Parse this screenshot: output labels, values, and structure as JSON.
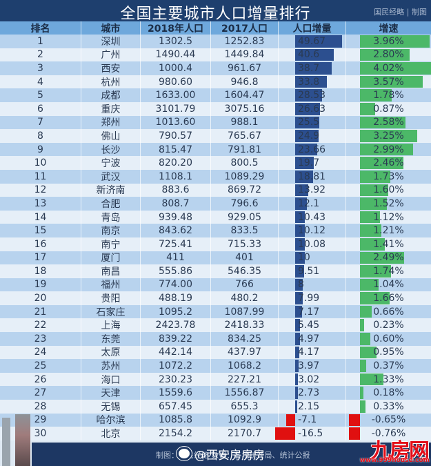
{
  "header": {
    "title": "全国主要城市人口增量排行",
    "credit": "国民经略 | 制图"
  },
  "columns": [
    "排名",
    "城市",
    "2018年人口",
    "2017人口",
    "人口增量",
    "增速"
  ],
  "rows": [
    {
      "rank": "1",
      "city": "深圳",
      "pop2018": "1302.5",
      "pop2017": "1252.83",
      "increase": "49.67",
      "growth": "3.96%"
    },
    {
      "rank": "2",
      "city": "广州",
      "pop2018": "1490.44",
      "pop2017": "1449.84",
      "increase": "40.6",
      "growth": "2.80%"
    },
    {
      "rank": "3",
      "city": "西安",
      "pop2018": "1000.4",
      "pop2017": "961.67",
      "increase": "38.7",
      "growth": "4.02%"
    },
    {
      "rank": "4",
      "city": "杭州",
      "pop2018": "980.60",
      "pop2017": "946.8",
      "increase": "33.8",
      "growth": "3.57%"
    },
    {
      "rank": "5",
      "city": "成都",
      "pop2018": "1633.00",
      "pop2017": "1604.47",
      "increase": "28.53",
      "growth": "1.78%"
    },
    {
      "rank": "6",
      "city": "重庆",
      "pop2018": "3101.79",
      "pop2017": "3075.16",
      "increase": "26.63",
      "growth": "0.87%"
    },
    {
      "rank": "7",
      "city": "郑州",
      "pop2018": "1013.60",
      "pop2017": "988.1",
      "increase": "25.5",
      "growth": "2.58%"
    },
    {
      "rank": "8",
      "city": "佛山",
      "pop2018": "790.57",
      "pop2017": "765.67",
      "increase": "24.9",
      "growth": "3.25%"
    },
    {
      "rank": "9",
      "city": "长沙",
      "pop2018": "815.47",
      "pop2017": "791.81",
      "increase": "23.66",
      "growth": "2.99%"
    },
    {
      "rank": "10",
      "city": "宁波",
      "pop2018": "820.20",
      "pop2017": "800.5",
      "increase": "19.7",
      "growth": "2.46%"
    },
    {
      "rank": "11",
      "city": "武汉",
      "pop2018": "1108.1",
      "pop2017": "1089.29",
      "increase": "18.81",
      "growth": "1.73%"
    },
    {
      "rank": "12",
      "city": "新济南",
      "pop2018": "883.6",
      "pop2017": "869.72",
      "increase": "13.92",
      "growth": "1.60%"
    },
    {
      "rank": "13",
      "city": "合肥",
      "pop2018": "808.7",
      "pop2017": "796.6",
      "increase": "12.1",
      "growth": "1.52%"
    },
    {
      "rank": "14",
      "city": "青岛",
      "pop2018": "939.48",
      "pop2017": "929.05",
      "increase": "10.43",
      "growth": "1.12%"
    },
    {
      "rank": "15",
      "city": "南京",
      "pop2018": "843.62",
      "pop2017": "833.5",
      "increase": "10.12",
      "growth": "1.21%"
    },
    {
      "rank": "16",
      "city": "南宁",
      "pop2018": "725.41",
      "pop2017": "715.33",
      "increase": "10.08",
      "growth": "1.41%"
    },
    {
      "rank": "17",
      "city": "厦门",
      "pop2018": "411",
      "pop2017": "401",
      "increase": "10",
      "growth": "2.49%"
    },
    {
      "rank": "18",
      "city": "南昌",
      "pop2018": "555.86",
      "pop2017": "546.35",
      "increase": "9.51",
      "growth": "1.74%"
    },
    {
      "rank": "19",
      "city": "福州",
      "pop2018": "774.00",
      "pop2017": "766",
      "increase": "8",
      "growth": "1.04%"
    },
    {
      "rank": "20",
      "city": "贵阳",
      "pop2018": "488.19",
      "pop2017": "480.2",
      "increase": "7.99",
      "growth": "1.66%"
    },
    {
      "rank": "21",
      "city": "石家庄",
      "pop2018": "1095.2",
      "pop2017": "1087.99",
      "increase": "7.17",
      "growth": "0.66%"
    },
    {
      "rank": "22",
      "city": "上海",
      "pop2018": "2423.78",
      "pop2017": "2418.33",
      "increase": "5.45",
      "growth": "0.23%"
    },
    {
      "rank": "23",
      "city": "东莞",
      "pop2018": "839.22",
      "pop2017": "834.25",
      "increase": "4.97",
      "growth": "0.60%"
    },
    {
      "rank": "24",
      "city": "太原",
      "pop2018": "442.14",
      "pop2017": "437.97",
      "increase": "4.17",
      "growth": "0.95%"
    },
    {
      "rank": "25",
      "city": "苏州",
      "pop2018": "1072.2",
      "pop2017": "1068.2",
      "increase": "3.97",
      "growth": "0.37%"
    },
    {
      "rank": "26",
      "city": "海口",
      "pop2018": "230.23",
      "pop2017": "227.21",
      "increase": "3.02",
      "growth": "1.33%"
    },
    {
      "rank": "27",
      "city": "天津",
      "pop2018": "1559.6",
      "pop2017": "1556.87",
      "increase": "2.73",
      "growth": "0.18%"
    },
    {
      "rank": "28",
      "city": "无锡",
      "pop2018": "657.45",
      "pop2017": "655.3",
      "increase": "2.15",
      "growth": "0.33%"
    },
    {
      "rank": "29",
      "city": "哈尔滨",
      "pop2018": "1085.8",
      "pop2017": "1092.9",
      "increase": "-7.1",
      "growth": "-0.65%"
    },
    {
      "rank": "30",
      "city": "北京",
      "pop2018": "2154.2",
      "pop2017": "2170.7",
      "increase": "-16.5",
      "growth": "-0.76%"
    }
  ],
  "footer": {
    "source": "制图：国民经略  数据：各地统计局、统计公报",
    "weibo": "@西安房房房"
  },
  "watermark": {
    "logo": "九房网",
    "url": "www.999house.com"
  },
  "colors": {
    "title_bg": "#1e3f6e",
    "header_bg": "#6ea8dc",
    "row_odd": "#b8d3ee",
    "row_even": "#e6eff8",
    "increase_bar": "#2c4f8f",
    "growth_bar": "#4cb868",
    "negative_bar": "#e01010"
  },
  "chart_data": {
    "type": "table",
    "title": "全国主要城市人口增量排行",
    "columns": [
      "排名",
      "城市",
      "2018年人口",
      "2017人口",
      "人口增量",
      "增速"
    ],
    "categories": [
      "深圳",
      "广州",
      "西安",
      "杭州",
      "成都",
      "重庆",
      "郑州",
      "佛山",
      "长沙",
      "宁波",
      "武汉",
      "新济南",
      "合肥",
      "青岛",
      "南京",
      "南宁",
      "厦门",
      "南昌",
      "福州",
      "贵阳",
      "石家庄",
      "上海",
      "东莞",
      "太原",
      "苏州",
      "海口",
      "天津",
      "无锡",
      "哈尔滨",
      "北京"
    ],
    "series": [
      {
        "name": "2018年人口",
        "values": [
          1302.5,
          1490.44,
          1000.4,
          980.6,
          1633.0,
          3101.79,
          1013.6,
          790.57,
          815.47,
          820.2,
          1108.1,
          883.6,
          808.7,
          939.48,
          843.62,
          725.41,
          411,
          555.86,
          774.0,
          488.19,
          1095.2,
          2423.78,
          839.22,
          442.14,
          1072.2,
          230.23,
          1559.6,
          657.45,
          1085.8,
          2154.2
        ]
      },
      {
        "name": "2017人口",
        "values": [
          1252.83,
          1449.84,
          961.67,
          946.8,
          1604.47,
          3075.16,
          988.1,
          765.67,
          791.81,
          800.5,
          1089.29,
          869.72,
          796.6,
          929.05,
          833.5,
          715.33,
          401,
          546.35,
          766,
          480.2,
          1087.99,
          2418.33,
          834.25,
          437.97,
          1068.2,
          227.21,
          1556.87,
          655.3,
          1092.9,
          2170.7
        ]
      },
      {
        "name": "人口增量",
        "values": [
          49.67,
          40.6,
          38.7,
          33.8,
          28.53,
          26.63,
          25.5,
          24.9,
          23.66,
          19.7,
          18.81,
          13.92,
          12.1,
          10.43,
          10.12,
          10.08,
          10,
          9.51,
          8,
          7.99,
          7.17,
          5.45,
          4.97,
          4.17,
          3.97,
          3.02,
          2.73,
          2.15,
          -7.1,
          -16.5
        ]
      },
      {
        "name": "增速(%)",
        "values": [
          3.96,
          2.8,
          4.02,
          3.57,
          1.78,
          0.87,
          2.58,
          3.25,
          2.99,
          2.46,
          1.73,
          1.6,
          1.52,
          1.12,
          1.21,
          1.41,
          2.49,
          1.74,
          1.04,
          1.66,
          0.66,
          0.23,
          0.6,
          0.95,
          0.37,
          1.33,
          0.18,
          0.33,
          -0.65,
          -0.76
        ]
      }
    ],
    "source": "国民经略 / 各地统计局、统计公报"
  }
}
